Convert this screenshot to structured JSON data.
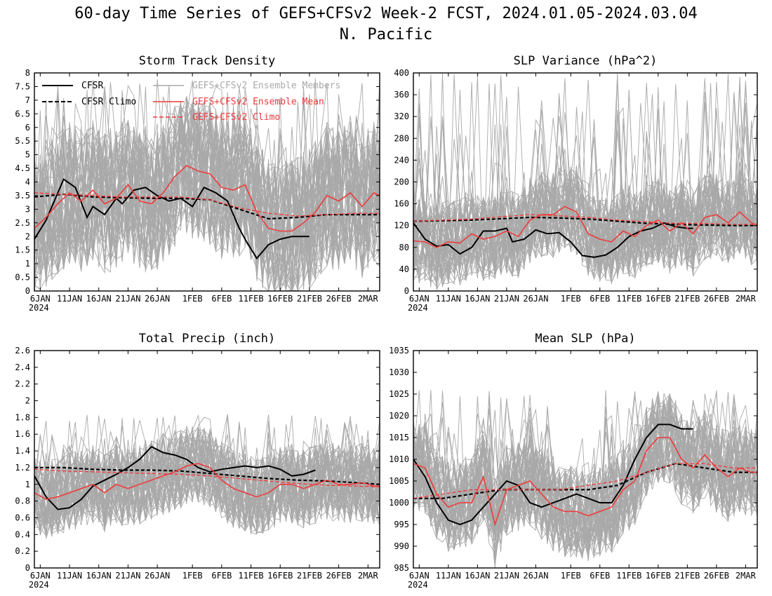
{
  "figure": {
    "title_line1": "60-day Time Series of GEFS+CFSv2 Week-2 FCST, 2024.01.05-2024.03.04",
    "title_line2": "N. Pacific",
    "colors": {
      "cfsr": "#000000",
      "members": "#a9a9a9",
      "ens_mean": "#f03a3a",
      "ens_climo": "#f03a3a",
      "cfsr_climo": "#000000"
    },
    "legend": {
      "cfsr": "CFSR",
      "cfsr_climo": "CFSR Climo",
      "members": "GEFS+CFSv2 Ensemble Members",
      "ens_mean": "GEFS+CFSv2 Ensemble Mean",
      "ens_climo": "GEFS+CFSv2 Climo"
    },
    "x_tick_labels": [
      "6JAN",
      "11JAN",
      "16JAN",
      "21JAN",
      "26JAN",
      "1FEB",
      "6FEB",
      "11FEB",
      "16FEB",
      "21FEB",
      "26FEB",
      "2MAR"
    ],
    "x_year_label": "2024"
  },
  "chart_data": [
    {
      "type": "line",
      "title": "Storm Track Density",
      "ylim": [
        0,
        8
      ],
      "yticks": [
        "0",
        "0.5",
        "1",
        "1.5",
        "2",
        "2.5",
        "3",
        "3.5",
        "4",
        "4.5",
        "5",
        "5.5",
        "6",
        "6.5",
        "7",
        "7.5",
        "8"
      ],
      "x_dates": [
        "2024-01-05",
        "2024-03-04"
      ],
      "legend_position": "top",
      "members_band": {
        "lower": 0.6,
        "upper": 5.6,
        "peak_upper": 7.8
      },
      "series": [
        {
          "name": "CFSR",
          "x": [
            0,
            2,
            5,
            7,
            9,
            10,
            12,
            14,
            15,
            17,
            19,
            21,
            23,
            25,
            27,
            29,
            31,
            33,
            35,
            36,
            38,
            40,
            42,
            44,
            45,
            47
          ],
          "values": [
            1.9,
            2.6,
            4.1,
            3.8,
            2.7,
            3.1,
            2.8,
            3.4,
            3.2,
            3.7,
            3.8,
            3.5,
            3.3,
            3.4,
            3.1,
            3.8,
            3.6,
            3.3,
            2.3,
            1.9,
            1.2,
            1.7,
            1.9,
            2.0,
            2.0,
            2.0
          ]
        },
        {
          "name": "CFSR Climo",
          "x": [
            0,
            5,
            10,
            15,
            20,
            25,
            30,
            35,
            40,
            45,
            50,
            55,
            59
          ],
          "values": [
            3.45,
            3.55,
            3.45,
            3.42,
            3.4,
            3.4,
            3.35,
            3.0,
            2.65,
            2.7,
            2.8,
            2.8,
            2.8
          ]
        },
        {
          "name": "GEFS+CFSv2 Ensemble Mean",
          "x": [
            0,
            2,
            4,
            6,
            8,
            10,
            12,
            14,
            16,
            18,
            20,
            22,
            24,
            26,
            28,
            30,
            32,
            34,
            36,
            38,
            40,
            42,
            44,
            46,
            48,
            50,
            52,
            54,
            56,
            58,
            59
          ],
          "values": [
            2.3,
            2.7,
            3.2,
            3.6,
            3.3,
            3.7,
            3.2,
            3.4,
            3.9,
            3.3,
            3.2,
            3.6,
            4.2,
            4.6,
            4.4,
            4.3,
            3.8,
            3.7,
            3.9,
            2.9,
            2.3,
            2.2,
            2.2,
            2.5,
            2.9,
            3.5,
            3.3,
            3.6,
            3.1,
            3.6,
            3.5
          ]
        },
        {
          "name": "GEFS+CFSv2 Climo",
          "x": [
            0,
            5,
            10,
            15,
            20,
            25,
            30,
            35,
            40,
            45,
            50,
            55,
            59
          ],
          "values": [
            3.6,
            3.55,
            3.5,
            3.45,
            3.45,
            3.45,
            3.35,
            3.05,
            2.85,
            2.75,
            2.8,
            2.85,
            2.85
          ]
        }
      ]
    },
    {
      "type": "line",
      "title": "SLP Variance (hPa^2)",
      "ylim": [
        0,
        400
      ],
      "yticks": [
        "0",
        "40",
        "80",
        "120",
        "160",
        "200",
        "240",
        "280",
        "320",
        "360",
        "400"
      ],
      "x_dates": [
        "2024-01-05",
        "2024-03-04"
      ],
      "members_band": {
        "lower": 50,
        "upper": 200,
        "peak_upper": 400
      },
      "series": [
        {
          "name": "CFSR",
          "x": [
            0,
            2,
            4,
            6,
            8,
            10,
            12,
            14,
            16,
            17,
            19,
            21,
            23,
            25,
            27,
            29,
            31,
            33,
            35,
            37,
            39,
            41,
            43,
            45,
            47,
            48
          ],
          "values": [
            125,
            95,
            82,
            85,
            68,
            80,
            110,
            110,
            115,
            90,
            95,
            112,
            105,
            107,
            90,
            65,
            62,
            66,
            80,
            100,
            110,
            115,
            125,
            118,
            115,
            115
          ]
        },
        {
          "name": "CFSR Climo",
          "x": [
            0,
            10,
            20,
            25,
            30,
            35,
            40,
            45,
            50,
            55,
            59
          ],
          "values": [
            128,
            130,
            135,
            134,
            132,
            128,
            124,
            122,
            121,
            120,
            120
          ]
        },
        {
          "name": "GEFS+CFSv2 Ensemble Mean",
          "x": [
            0,
            2,
            4,
            6,
            8,
            10,
            12,
            14,
            16,
            18,
            20,
            22,
            24,
            26,
            28,
            30,
            32,
            34,
            36,
            38,
            40,
            42,
            44,
            46,
            48,
            50,
            52,
            54,
            56,
            58,
            59
          ],
          "values": [
            92,
            90,
            80,
            90,
            88,
            105,
            95,
            100,
            110,
            100,
            130,
            140,
            140,
            155,
            145,
            105,
            95,
            90,
            110,
            100,
            120,
            130,
            110,
            125,
            105,
            135,
            140,
            125,
            145,
            125,
            120
          ]
        },
        {
          "name": "GEFS+CFSv2 Climo",
          "x": [
            0,
            10,
            20,
            25,
            30,
            35,
            40,
            45,
            50,
            55,
            59
          ],
          "values": [
            128,
            132,
            140,
            138,
            135,
            130,
            127,
            124,
            124,
            122,
            122
          ]
        }
      ]
    },
    {
      "type": "line",
      "title": "Total Precip (inch)",
      "ylim": [
        0,
        2.6
      ],
      "yticks": [
        "0",
        "0.2",
        "0.4",
        "0.6",
        "0.8",
        "1",
        "1.2",
        "1.4",
        "1.6",
        "1.8",
        "2",
        "2.2",
        "2.4",
        "2.6"
      ],
      "x_dates": [
        "2024-01-05",
        "2024-03-04"
      ],
      "members_band": {
        "lower": 0.55,
        "upper": 1.45,
        "peak_upper": 1.85
      },
      "series": [
        {
          "name": "CFSR",
          "x": [
            0,
            2,
            4,
            6,
            8,
            10,
            12,
            14,
            16,
            18,
            20,
            22,
            24,
            26,
            28,
            30,
            32,
            34,
            36,
            38,
            40,
            42,
            44,
            46,
            48
          ],
          "values": [
            1.1,
            0.85,
            0.7,
            0.72,
            0.82,
            0.98,
            1.05,
            1.12,
            1.2,
            1.3,
            1.45,
            1.38,
            1.35,
            1.3,
            1.2,
            1.15,
            1.18,
            1.2,
            1.22,
            1.2,
            1.22,
            1.18,
            1.1,
            1.12,
            1.17
          ]
        },
        {
          "name": "CFSR Climo",
          "x": [
            0,
            5,
            10,
            15,
            20,
            25,
            30,
            35,
            40,
            45,
            50,
            55,
            59
          ],
          "values": [
            1.2,
            1.2,
            1.18,
            1.17,
            1.17,
            1.16,
            1.13,
            1.1,
            1.07,
            1.05,
            1.04,
            1.02,
            1.0
          ]
        },
        {
          "name": "GEFS+CFSv2 Ensemble Mean",
          "x": [
            0,
            2,
            4,
            6,
            8,
            10,
            12,
            14,
            16,
            18,
            20,
            22,
            24,
            26,
            28,
            30,
            32,
            34,
            36,
            38,
            40,
            42,
            44,
            46,
            48,
            50,
            52,
            54,
            56,
            58,
            59
          ],
          "values": [
            0.9,
            0.82,
            0.85,
            0.9,
            0.95,
            1.0,
            0.9,
            1.0,
            0.95,
            1.0,
            1.05,
            1.1,
            1.15,
            1.22,
            1.25,
            1.2,
            1.05,
            0.95,
            0.9,
            0.85,
            0.9,
            1.0,
            1.0,
            0.95,
            1.0,
            1.05,
            1.0,
            1.0,
            1.02,
            0.98,
            0.98
          ]
        },
        {
          "name": "GEFS+CFSv2 Climo",
          "x": [
            0,
            5,
            10,
            15,
            20,
            25,
            30,
            35,
            40,
            45,
            50,
            55,
            59
          ],
          "values": [
            1.18,
            1.16,
            1.15,
            1.14,
            1.13,
            1.12,
            1.1,
            1.07,
            1.04,
            1.01,
            0.99,
            0.98,
            0.97
          ]
        }
      ]
    },
    {
      "type": "line",
      "title": "Mean SLP (hPa)",
      "ylim": [
        985,
        1035
      ],
      "yticks": [
        "985",
        "990",
        "995",
        "1000",
        "1005",
        "1010",
        "1015",
        "1020",
        "1025",
        "1030",
        "1035"
      ],
      "x_dates": [
        "2024-01-05",
        "2024-03-04"
      ],
      "members_band": {
        "lower": 993,
        "upper": 1013,
        "peak_upper": 1026
      },
      "series": [
        {
          "name": "CFSR",
          "x": [
            0,
            2,
            4,
            6,
            8,
            10,
            12,
            14,
            16,
            18,
            20,
            22,
            24,
            26,
            28,
            30,
            32,
            34,
            36,
            38,
            40,
            42,
            44,
            46,
            48
          ],
          "values": [
            1010,
            1006,
            1000,
            996,
            995,
            996,
            999,
            1002,
            1005,
            1004,
            1000,
            999,
            1000,
            1001,
            1002,
            1001,
            1000,
            1000,
            1004,
            1010,
            1015,
            1018,
            1018,
            1017,
            1017
          ]
        },
        {
          "name": "CFSR Climo",
          "x": [
            0,
            5,
            10,
            15,
            20,
            25,
            30,
            35,
            40,
            45,
            50,
            55,
            59
          ],
          "values": [
            1001,
            1001,
            1002,
            1003,
            1003,
            1003,
            1003,
            1004,
            1007,
            1009,
            1008,
            1007,
            1007
          ]
        },
        {
          "name": "GEFS+CFSv2 Ensemble Mean",
          "x": [
            0,
            2,
            4,
            6,
            8,
            10,
            12,
            14,
            16,
            18,
            20,
            22,
            24,
            26,
            28,
            30,
            32,
            34,
            36,
            38,
            40,
            42,
            44,
            46,
            48,
            50,
            52,
            54,
            56,
            58,
            59
          ],
          "values": [
            1009,
            1008,
            1002,
            999,
            1000,
            1000,
            1006,
            995,
            1003,
            1004,
            1005,
            1002,
            999,
            998,
            998,
            997,
            998,
            999,
            1003,
            1005,
            1012,
            1015,
            1015,
            1010,
            1008,
            1011,
            1008,
            1006,
            1008,
            1007,
            1007
          ]
        },
        {
          "name": "GEFS+CFSv2 Climo",
          "x": [
            0,
            5,
            10,
            15,
            20,
            25,
            30,
            35,
            40,
            45,
            50,
            55,
            59
          ],
          "values": [
            1001,
            1002,
            1003,
            1003,
            1003,
            1003,
            1004,
            1005,
            1007,
            1009,
            1009,
            1008,
            1008
          ]
        }
      ]
    }
  ]
}
